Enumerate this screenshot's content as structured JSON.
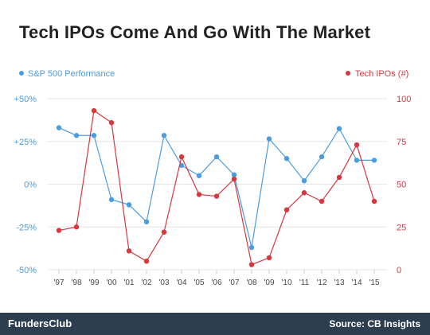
{
  "chart_data": {
    "type": "line",
    "title": "Tech IPOs Come And Go With The Market",
    "categories": [
      "'97",
      "'98",
      "'99",
      "'00",
      "'01",
      "'02",
      "'03",
      "'04",
      "'05",
      "'06",
      "'07",
      "'08",
      "'09",
      "'10",
      "'11",
      "'12",
      "'13",
      "'14",
      "'15"
    ],
    "y_left": {
      "ticks": [
        50,
        25,
        0,
        -25,
        -50
      ],
      "tick_labels": [
        "+50%",
        "+25%",
        "0%",
        "-25%",
        "-50%"
      ],
      "range": [
        -50,
        50
      ]
    },
    "y_right": {
      "ticks": [
        100,
        75,
        50,
        25,
        0
      ],
      "tick_labels": [
        "100",
        "75",
        "50",
        "25",
        "0"
      ],
      "range": [
        0,
        100
      ]
    },
    "series": [
      {
        "name": "S&P 500 Performance",
        "axis": "left",
        "color": "#4a9de0",
        "values": [
          33,
          28.5,
          28.5,
          -9,
          -12,
          -22,
          28.5,
          11,
          5,
          16,
          5.5,
          -37,
          26.5,
          15,
          2,
          16,
          32.5,
          14,
          14
        ]
      },
      {
        "name": "Tech IPOs (#)",
        "axis": "right",
        "color": "#d9363e",
        "values": [
          23,
          25,
          93,
          86,
          11,
          5,
          22,
          66,
          44,
          43,
          53,
          3,
          7,
          35,
          45,
          40,
          54,
          73,
          40
        ]
      }
    ],
    "legend_placement": "top"
  },
  "footer": {
    "brand": "FundersClub",
    "source": "Source: CB Insights"
  },
  "colors": {
    "footer_bg": "#2c3e50",
    "grid": "#e6e6e6"
  }
}
